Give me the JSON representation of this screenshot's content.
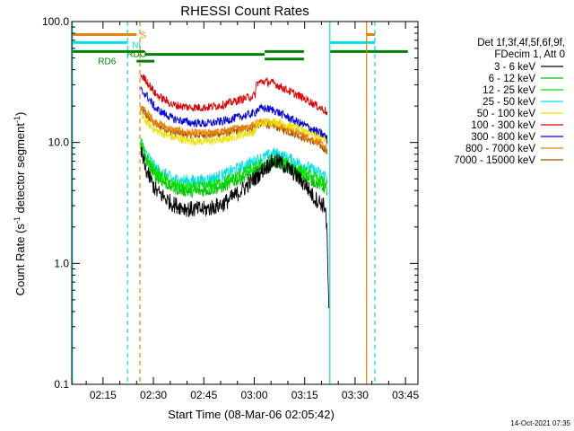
{
  "chart_data": {
    "type": "line",
    "title": "RHESSI Count Rates",
    "xlabel": "Start Time (08-Mar-06 02:05:42)",
    "ylabel_main": "Count Rate (s",
    "ylabel_sup1": "-1",
    "ylabel_mid": " detector segment",
    "ylabel_sup2": "-1",
    "ylabel_end": ")",
    "y_scale": "log",
    "ylim": [
      0.1,
      100
    ],
    "y_ticks": [
      {
        "value": 0.1,
        "label": "0.1"
      },
      {
        "value": 1,
        "label": "1.0"
      },
      {
        "value": 10,
        "label": "10.0"
      },
      {
        "value": 100,
        "label": "100.0"
      }
    ],
    "x_unit": "minutes after 02:05:42",
    "xlim": [
      0,
      103
    ],
    "x_ticks": [
      {
        "value": 9.3,
        "label": "02:15"
      },
      {
        "value": 24.3,
        "label": "02:30"
      },
      {
        "value": 39.3,
        "label": "02:45"
      },
      {
        "value": 54.3,
        "label": "03:00"
      },
      {
        "value": 69.3,
        "label": "03:15"
      },
      {
        "value": 84.3,
        "label": "03:30"
      },
      {
        "value": 99.3,
        "label": "03:45"
      }
    ],
    "legend": {
      "placement": "right",
      "header1": "Det 1f,3f,4f,5f,6f,9f,",
      "header2": "FDecim 1, Att 0"
    },
    "series": [
      {
        "name": "3 - 6 keV",
        "color": "#000000",
        "points": [
          [
            20.5,
            8.5
          ],
          [
            22,
            6
          ],
          [
            25,
            4
          ],
          [
            30,
            3.1
          ],
          [
            35,
            2.8
          ],
          [
            40,
            2.8
          ],
          [
            45,
            3.1
          ],
          [
            50,
            3.9
          ],
          [
            55,
            5.2
          ],
          [
            57,
            6
          ],
          [
            60,
            7
          ],
          [
            62,
            6.8
          ],
          [
            66,
            5.6
          ],
          [
            70,
            4.3
          ],
          [
            72,
            3.5
          ],
          [
            74,
            3.2
          ],
          [
            75.5,
            2.9
          ],
          [
            76,
            1.6
          ],
          [
            76.4,
            0.5
          ],
          [
            76.6,
            0.38
          ]
        ]
      },
      {
        "name": "6 - 12 keV",
        "color": "#00c000",
        "points": [
          [
            20.5,
            9.5
          ],
          [
            22,
            7.2
          ],
          [
            25,
            5.2
          ],
          [
            30,
            4.2
          ],
          [
            35,
            3.9
          ],
          [
            40,
            4.0
          ],
          [
            45,
            4.3
          ],
          [
            50,
            5.0
          ],
          [
            55,
            5.8
          ],
          [
            57,
            6.1
          ],
          [
            60,
            6.8
          ],
          [
            62,
            6.6
          ],
          [
            66,
            5.9
          ],
          [
            70,
            5.1
          ],
          [
            73,
            4.6
          ],
          [
            75.5,
            4.2
          ],
          [
            76,
            3.9
          ]
        ]
      },
      {
        "name": "12 - 25 keV",
        "color": "#00e000",
        "points": [
          [
            20.5,
            10
          ],
          [
            22,
            7.6
          ],
          [
            25,
            5.6
          ],
          [
            30,
            4.5
          ],
          [
            35,
            4.2
          ],
          [
            40,
            4.3
          ],
          [
            45,
            4.7
          ],
          [
            50,
            5.4
          ],
          [
            55,
            6.3
          ],
          [
            57,
            6.6
          ],
          [
            60,
            7.3
          ],
          [
            62,
            7.0
          ],
          [
            66,
            6.3
          ],
          [
            70,
            5.5
          ],
          [
            73,
            5.0
          ],
          [
            75.5,
            4.6
          ],
          [
            76,
            4.3
          ]
        ]
      },
      {
        "name": "25 - 50 keV",
        "color": "#00e0e0",
        "points": [
          [
            20.5,
            10.5
          ],
          [
            22,
            8.2
          ],
          [
            25,
            6.1
          ],
          [
            30,
            5.0
          ],
          [
            35,
            4.8
          ],
          [
            40,
            4.9
          ],
          [
            45,
            5.4
          ],
          [
            50,
            6.2
          ],
          [
            55,
            7.2
          ],
          [
            57,
            7.5
          ],
          [
            60,
            8.2
          ],
          [
            62,
            7.9
          ],
          [
            66,
            7.1
          ],
          [
            70,
            6.3
          ],
          [
            73,
            5.7
          ],
          [
            75.5,
            5.3
          ],
          [
            76,
            5.0
          ]
        ]
      },
      {
        "name": "50 - 100 keV",
        "color": "#f0e000",
        "points": [
          [
            20.5,
            17
          ],
          [
            22,
            15
          ],
          [
            25,
            12.5
          ],
          [
            30,
            11
          ],
          [
            35,
            10.3
          ],
          [
            40,
            10.2
          ],
          [
            45,
            10.5
          ],
          [
            50,
            11.5
          ],
          [
            54.5,
            12.3
          ],
          [
            55,
            14
          ],
          [
            57,
            14.5
          ],
          [
            60,
            15
          ],
          [
            62,
            14.5
          ],
          [
            66,
            13.5
          ],
          [
            70,
            12.5
          ],
          [
            73,
            11.6
          ],
          [
            75.5,
            10.8
          ],
          [
            76,
            10.5
          ]
        ]
      },
      {
        "name": "100 - 300 keV",
        "color": "#e00000",
        "points": [
          [
            20.5,
            36
          ],
          [
            22,
            33
          ],
          [
            25,
            25
          ],
          [
            30,
            20.5
          ],
          [
            35,
            19.5
          ],
          [
            40,
            19.5
          ],
          [
            45,
            20.5
          ],
          [
            50,
            22.5
          ],
          [
            54.5,
            24.5
          ],
          [
            55,
            31
          ],
          [
            57,
            32
          ],
          [
            60,
            31
          ],
          [
            62,
            29
          ],
          [
            66,
            25.5
          ],
          [
            70,
            22.5
          ],
          [
            73,
            20
          ],
          [
            75.5,
            18.3
          ],
          [
            76,
            17
          ]
        ]
      },
      {
        "name": "300 - 800 keV",
        "color": "#0000e0",
        "points": [
          [
            20.5,
            27
          ],
          [
            22,
            25
          ],
          [
            25,
            19
          ],
          [
            30,
            15.8
          ],
          [
            35,
            14.6
          ],
          [
            40,
            14.3
          ],
          [
            45,
            15
          ],
          [
            50,
            16.3
          ],
          [
            54.5,
            17.5
          ],
          [
            55,
            18.7
          ],
          [
            57,
            19.2
          ],
          [
            60,
            18.6
          ],
          [
            62,
            17.4
          ],
          [
            66,
            15.3
          ],
          [
            70,
            13.6
          ],
          [
            73,
            12.3
          ],
          [
            75.5,
            11.3
          ],
          [
            76,
            10.4
          ]
        ]
      },
      {
        "name": "800 - 7000 keV",
        "color": "#f08000",
        "points": [
          [
            20.5,
            20
          ],
          [
            22,
            18
          ],
          [
            25,
            14.7
          ],
          [
            30,
            12.7
          ],
          [
            35,
            12
          ],
          [
            40,
            11.9
          ],
          [
            45,
            12.3
          ],
          [
            50,
            13.2
          ],
          [
            54.5,
            14
          ],
          [
            55,
            14.6
          ],
          [
            57,
            15
          ],
          [
            60,
            14.5
          ],
          [
            62,
            13.8
          ],
          [
            66,
            12.5
          ],
          [
            70,
            11.2
          ],
          [
            73,
            10.2
          ],
          [
            75.5,
            9.2
          ],
          [
            76,
            8.5
          ]
        ]
      },
      {
        "name": "7000 - 15000 keV",
        "color": "#a05000",
        "points": [
          [
            20.5,
            19
          ],
          [
            22,
            17
          ],
          [
            25,
            14
          ],
          [
            30,
            12.2
          ],
          [
            35,
            11.6
          ],
          [
            40,
            11.5
          ],
          [
            45,
            11.9
          ],
          [
            50,
            12.7
          ],
          [
            54.5,
            13.5
          ],
          [
            55,
            14
          ],
          [
            57,
            14.3
          ],
          [
            60,
            13.8
          ],
          [
            62,
            13.1
          ],
          [
            66,
            11.9
          ],
          [
            70,
            10.7
          ],
          [
            73,
            9.8
          ],
          [
            75.5,
            8.8
          ],
          [
            76,
            8.2
          ]
        ]
      }
    ],
    "markers": {
      "vertical_lines": [
        {
          "x": 0.2,
          "color": "#00e0e0",
          "dash": false
        },
        {
          "x": 16.6,
          "color": "#00e0e0",
          "dash": true
        },
        {
          "x": 20.3,
          "color": "#f08000",
          "dash": true
        },
        {
          "x": 76.8,
          "color": "#00e0e0",
          "dash": false
        },
        {
          "x": 87.7,
          "color": "#f08000",
          "dash": false
        },
        {
          "x": 90.2,
          "color": "#00e0e0",
          "dash": true
        }
      ],
      "state_bars": [
        {
          "label": "S",
          "color": "#f08000",
          "level": 78,
          "segments": [
            [
              0,
              19.3
            ],
            [
              87.7,
              90.2
            ]
          ]
        },
        {
          "label": "NI",
          "color": "#00e0e0",
          "level": 67,
          "segments": [
            [
              0,
              16.6
            ],
            [
              77,
              90.2
            ]
          ]
        },
        {
          "label": "RD6",
          "color": "#008000",
          "level": 56.5,
          "segments": [
            [
              0,
              21.7
            ],
            [
              57.4,
              69.1
            ],
            [
              76.8,
              100
            ]
          ]
        },
        {
          "label": "RDO",
          "color": "#008000",
          "level": 53.5,
          "segments": [
            [
              21.7,
              57.4
            ]
          ]
        },
        {
          "label": "",
          "color": "#008000",
          "level": 47,
          "segments": [
            [
              19.3,
              24.6
            ]
          ]
        },
        {
          "label": "",
          "color": "#008000",
          "level": 49,
          "segments": [
            [
              57.4,
              69.1
            ]
          ]
        }
      ]
    }
  },
  "footer": {
    "timestamp": "14-Oct-2021 07:35"
  }
}
